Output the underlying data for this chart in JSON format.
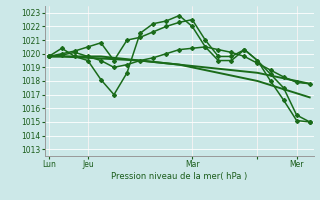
{
  "bg_color": "#cce8e8",
  "grid_color": "#b8d8d8",
  "line_color": "#1a6b1a",
  "xlabel": "Pression niveau de la mer( hPa )",
  "ylim": [
    1012.5,
    1023.5
  ],
  "xlim": [
    -0.3,
    20.3
  ],
  "num_points": 21,
  "day_vlines_x": [
    0,
    3,
    11,
    16,
    19
  ],
  "xtick_pos": [
    0,
    3,
    11,
    16,
    19
  ],
  "xtick_labels": [
    "Lun",
    "Jeu",
    "Mar",
    "",
    "Mer"
  ],
  "series": [
    {
      "y": [
        1019.8,
        1019.8,
        1019.75,
        1019.7,
        1019.65,
        1019.6,
        1019.55,
        1019.5,
        1019.4,
        1019.3,
        1019.2,
        1019.1,
        1019.0,
        1018.9,
        1018.8,
        1018.7,
        1018.6,
        1018.4,
        1018.2,
        1018.0,
        1017.8
      ],
      "lw": 1.4,
      "marker": null,
      "ms": 0
    },
    {
      "y": [
        1019.8,
        1019.8,
        1019.8,
        1019.8,
        1019.8,
        1019.7,
        1019.6,
        1019.5,
        1019.4,
        1019.3,
        1019.2,
        1019.0,
        1018.8,
        1018.6,
        1018.4,
        1018.2,
        1018.0,
        1017.7,
        1017.4,
        1017.1,
        1016.8
      ],
      "lw": 1.4,
      "marker": null,
      "ms": 0
    },
    {
      "y": [
        1019.8,
        1020.4,
        1019.8,
        1019.5,
        1018.1,
        1017.0,
        1018.6,
        1021.5,
        1022.2,
        1022.4,
        1022.8,
        1022.0,
        1020.5,
        1019.5,
        1019.5,
        1020.3,
        1019.5,
        1018.0,
        1016.6,
        1015.1,
        1015.0
      ],
      "lw": 1.1,
      "marker": "D",
      "ms": 2.0
    },
    {
      "y": [
        1019.8,
        1020.0,
        1020.2,
        1020.5,
        1020.8,
        1019.5,
        1021.0,
        1021.2,
        1021.6,
        1022.0,
        1022.3,
        1022.5,
        1021.0,
        1019.8,
        1019.8,
        1020.3,
        1019.5,
        1018.5,
        1017.5,
        1015.5,
        1015.0
      ],
      "lw": 1.1,
      "marker": "D",
      "ms": 2.0
    },
    {
      "y": [
        1019.8,
        1019.9,
        1020.1,
        1019.8,
        1019.5,
        1019.0,
        1019.2,
        1019.5,
        1019.7,
        1020.0,
        1020.3,
        1020.4,
        1020.5,
        1020.3,
        1020.1,
        1019.8,
        1019.3,
        1018.8,
        1018.3,
        1017.9,
        1017.8
      ],
      "lw": 1.1,
      "marker": "D",
      "ms": 2.0
    }
  ]
}
